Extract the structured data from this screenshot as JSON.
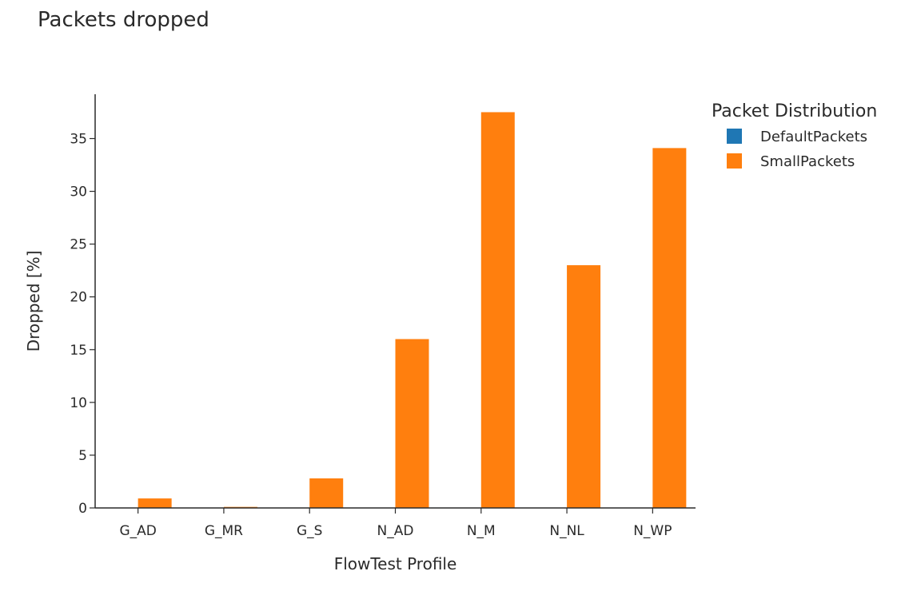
{
  "chart_data": {
    "type": "bar",
    "title": "Packets dropped",
    "xlabel": "FlowTest Profile",
    "ylabel": "Dropped [%]",
    "categories": [
      "G_AD",
      "G_MR",
      "G_S",
      "N_AD",
      "N_M",
      "N_NL",
      "N_WP"
    ],
    "series": [
      {
        "name": "DefaultPackets",
        "color": "#1f77b4",
        "values": [
          0,
          0,
          0,
          0,
          0,
          0,
          0
        ]
      },
      {
        "name": "SmallPackets",
        "color": "#ff7f0e",
        "values": [
          0.9,
          0.1,
          2.8,
          16.0,
          37.5,
          23.0,
          34.1
        ]
      }
    ],
    "ylim": [
      0,
      39.2
    ],
    "yticks": [
      0,
      5,
      10,
      15,
      20,
      25,
      30,
      35
    ],
    "legend": {
      "title": "Packet Distribution",
      "placement": "right"
    },
    "grid": false
  }
}
